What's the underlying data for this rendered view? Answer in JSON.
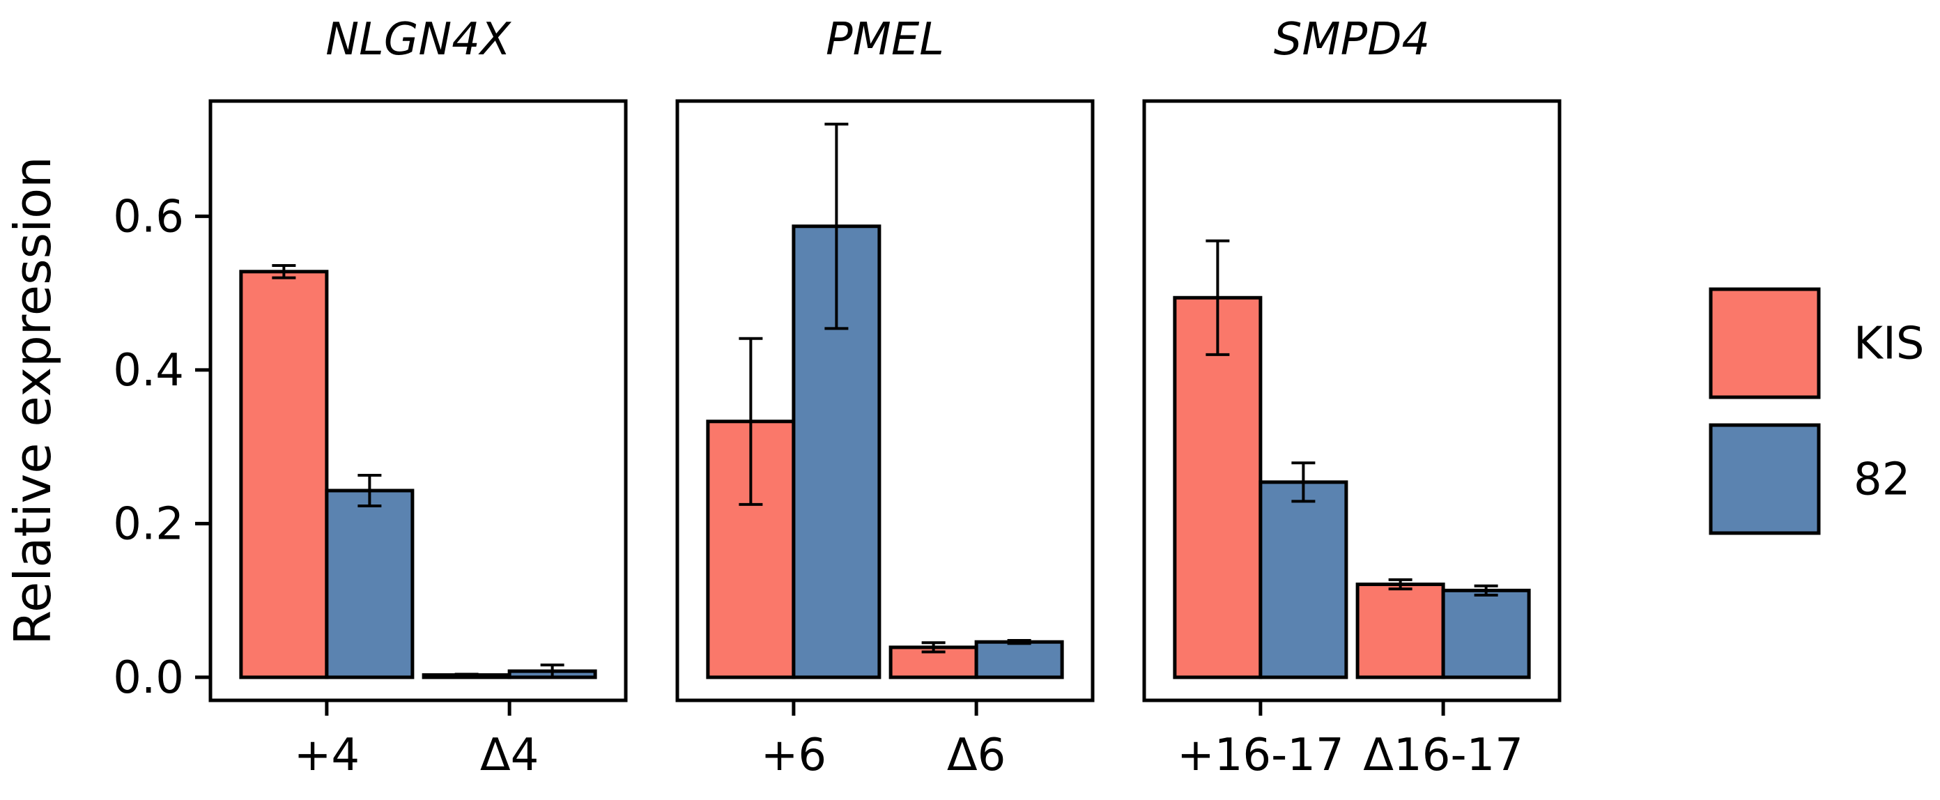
{
  "chart_data": {
    "type": "bar",
    "ylabel": "Relative expression",
    "ylim": [
      -0.03,
      0.75
    ],
    "yticks": [
      0.0,
      0.2,
      0.4,
      0.6
    ],
    "ytick_labels": [
      "0.0",
      "0.2",
      "0.4",
      "0.6"
    ],
    "legend": {
      "position": "right",
      "entries": [
        {
          "name": "KIS",
          "color": "#fa786a"
        },
        {
          "name": "82",
          "color": "#5b83b0"
        }
      ]
    },
    "panels": [
      {
        "title": "NLGN4X",
        "categories": [
          "+4",
          "Δ4"
        ],
        "series": [
          {
            "name": "KIS",
            "values": [
              0.528,
              0.003
            ],
            "errors": [
              0.008,
              0.001
            ]
          },
          {
            "name": "82",
            "values": [
              0.243,
              0.008
            ],
            "errors": [
              0.02,
              0.008
            ]
          }
        ]
      },
      {
        "title": "PMEL",
        "categories": [
          "+6",
          "Δ6"
        ],
        "series": [
          {
            "name": "KIS",
            "values": [
              0.333,
              0.039
            ],
            "errors": [
              0.108,
              0.006
            ]
          },
          {
            "name": "82",
            "values": [
              0.587,
              0.046
            ],
            "errors": [
              0.133,
              0.002
            ]
          }
        ]
      },
      {
        "title": "SMPD4",
        "categories": [
          "+16-17",
          "Δ16-17"
        ],
        "series": [
          {
            "name": "KIS",
            "values": [
              0.494,
              0.121
            ],
            "errors": [
              0.074,
              0.006
            ]
          },
          {
            "name": "82",
            "values": [
              0.254,
              0.113
            ],
            "errors": [
              0.025,
              0.006
            ]
          }
        ]
      }
    ]
  }
}
